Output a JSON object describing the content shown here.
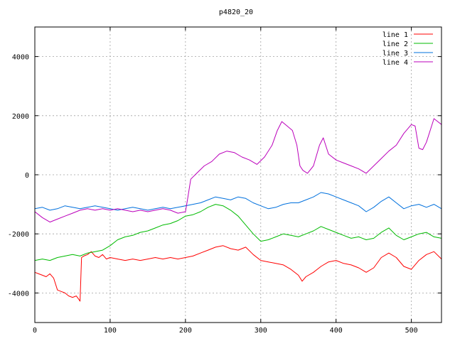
{
  "chart_data": {
    "type": "line",
    "title": "p4820_20",
    "xlabel": "",
    "ylabel": "",
    "xlim": [
      0,
      540
    ],
    "ylim": [
      -5000,
      5000
    ],
    "xticks": [
      0,
      100,
      200,
      300,
      400,
      500
    ],
    "yticks": [
      -4000,
      -2000,
      0,
      2000,
      4000
    ],
    "grid": true,
    "legend_position": "top-right",
    "series": [
      {
        "name": "line 1",
        "color": "#ff0000",
        "points": [
          [
            0,
            -3300
          ],
          [
            5,
            -3350
          ],
          [
            10,
            -3400
          ],
          [
            15,
            -3450
          ],
          [
            20,
            -3350
          ],
          [
            25,
            -3500
          ],
          [
            30,
            -3900
          ],
          [
            35,
            -3950
          ],
          [
            40,
            -4000
          ],
          [
            45,
            -4100
          ],
          [
            50,
            -4150
          ],
          [
            55,
            -4100
          ],
          [
            58,
            -4200
          ],
          [
            60,
            -4280
          ],
          [
            62,
            -2800
          ],
          [
            65,
            -2750
          ],
          [
            70,
            -2700
          ],
          [
            75,
            -2600
          ],
          [
            80,
            -2750
          ],
          [
            85,
            -2800
          ],
          [
            90,
            -2700
          ],
          [
            95,
            -2850
          ],
          [
            100,
            -2800
          ],
          [
            110,
            -2850
          ],
          [
            120,
            -2900
          ],
          [
            130,
            -2850
          ],
          [
            140,
            -2900
          ],
          [
            150,
            -2850
          ],
          [
            160,
            -2800
          ],
          [
            170,
            -2850
          ],
          [
            180,
            -2800
          ],
          [
            190,
            -2850
          ],
          [
            200,
            -2800
          ],
          [
            210,
            -2750
          ],
          [
            220,
            -2650
          ],
          [
            230,
            -2550
          ],
          [
            240,
            -2450
          ],
          [
            250,
            -2400
          ],
          [
            260,
            -2500
          ],
          [
            270,
            -2550
          ],
          [
            280,
            -2450
          ],
          [
            290,
            -2700
          ],
          [
            300,
            -2900
          ],
          [
            310,
            -2950
          ],
          [
            320,
            -3000
          ],
          [
            330,
            -3050
          ],
          [
            340,
            -3200
          ],
          [
            350,
            -3400
          ],
          [
            355,
            -3600
          ],
          [
            360,
            -3450
          ],
          [
            370,
            -3300
          ],
          [
            380,
            -3100
          ],
          [
            390,
            -2950
          ],
          [
            400,
            -2900
          ],
          [
            410,
            -3000
          ],
          [
            420,
            -3050
          ],
          [
            430,
            -3150
          ],
          [
            440,
            -3300
          ],
          [
            450,
            -3150
          ],
          [
            460,
            -2800
          ],
          [
            470,
            -2650
          ],
          [
            480,
            -2800
          ],
          [
            490,
            -3100
          ],
          [
            500,
            -3200
          ],
          [
            510,
            -2900
          ],
          [
            520,
            -2700
          ],
          [
            530,
            -2600
          ],
          [
            540,
            -2850
          ]
        ]
      },
      {
        "name": "line 2",
        "color": "#00bb00",
        "points": [
          [
            0,
            -2900
          ],
          [
            10,
            -2850
          ],
          [
            20,
            -2900
          ],
          [
            30,
            -2800
          ],
          [
            40,
            -2750
          ],
          [
            50,
            -2700
          ],
          [
            60,
            -2750
          ],
          [
            70,
            -2650
          ],
          [
            80,
            -2600
          ],
          [
            90,
            -2550
          ],
          [
            100,
            -2400
          ],
          [
            110,
            -2200
          ],
          [
            120,
            -2100
          ],
          [
            130,
            -2050
          ],
          [
            140,
            -1950
          ],
          [
            150,
            -1900
          ],
          [
            160,
            -1800
          ],
          [
            170,
            -1700
          ],
          [
            180,
            -1650
          ],
          [
            190,
            -1550
          ],
          [
            200,
            -1400
          ],
          [
            210,
            -1350
          ],
          [
            220,
            -1250
          ],
          [
            230,
            -1100
          ],
          [
            240,
            -1000
          ],
          [
            250,
            -1050
          ],
          [
            260,
            -1200
          ],
          [
            270,
            -1400
          ],
          [
            280,
            -1700
          ],
          [
            290,
            -2000
          ],
          [
            300,
            -2250
          ],
          [
            310,
            -2200
          ],
          [
            320,
            -2100
          ],
          [
            330,
            -2000
          ],
          [
            340,
            -2050
          ],
          [
            350,
            -2100
          ],
          [
            360,
            -2000
          ],
          [
            370,
            -1900
          ],
          [
            380,
            -1750
          ],
          [
            390,
            -1850
          ],
          [
            400,
            -1950
          ],
          [
            410,
            -2050
          ],
          [
            420,
            -2150
          ],
          [
            430,
            -2100
          ],
          [
            440,
            -2200
          ],
          [
            450,
            -2150
          ],
          [
            460,
            -1950
          ],
          [
            470,
            -1800
          ],
          [
            480,
            -2050
          ],
          [
            490,
            -2200
          ],
          [
            500,
            -2100
          ],
          [
            510,
            -2000
          ],
          [
            520,
            -1950
          ],
          [
            530,
            -2100
          ],
          [
            540,
            -2150
          ]
        ]
      },
      {
        "name": "line 3",
        "color": "#0070dd",
        "points": [
          [
            0,
            -1150
          ],
          [
            10,
            -1100
          ],
          [
            20,
            -1200
          ],
          [
            30,
            -1150
          ],
          [
            40,
            -1050
          ],
          [
            50,
            -1100
          ],
          [
            60,
            -1150
          ],
          [
            70,
            -1100
          ],
          [
            80,
            -1050
          ],
          [
            90,
            -1100
          ],
          [
            100,
            -1150
          ],
          [
            110,
            -1200
          ],
          [
            120,
            -1150
          ],
          [
            130,
            -1100
          ],
          [
            140,
            -1150
          ],
          [
            150,
            -1200
          ],
          [
            160,
            -1150
          ],
          [
            170,
            -1100
          ],
          [
            180,
            -1150
          ],
          [
            190,
            -1100
          ],
          [
            200,
            -1050
          ],
          [
            210,
            -1000
          ],
          [
            220,
            -950
          ],
          [
            230,
            -850
          ],
          [
            240,
            -750
          ],
          [
            250,
            -800
          ],
          [
            260,
            -850
          ],
          [
            270,
            -750
          ],
          [
            280,
            -800
          ],
          [
            290,
            -950
          ],
          [
            300,
            -1050
          ],
          [
            310,
            -1150
          ],
          [
            320,
            -1100
          ],
          [
            330,
            -1000
          ],
          [
            340,
            -950
          ],
          [
            350,
            -950
          ],
          [
            360,
            -850
          ],
          [
            370,
            -750
          ],
          [
            380,
            -600
          ],
          [
            390,
            -650
          ],
          [
            400,
            -750
          ],
          [
            410,
            -850
          ],
          [
            420,
            -950
          ],
          [
            430,
            -1050
          ],
          [
            440,
            -1250
          ],
          [
            450,
            -1100
          ],
          [
            460,
            -900
          ],
          [
            470,
            -750
          ],
          [
            480,
            -950
          ],
          [
            490,
            -1150
          ],
          [
            500,
            -1050
          ],
          [
            510,
            -1000
          ],
          [
            520,
            -1100
          ],
          [
            530,
            -1000
          ],
          [
            540,
            -1150
          ]
        ]
      },
      {
        "name": "line 4",
        "color": "#bb00bb",
        "points": [
          [
            0,
            -1250
          ],
          [
            10,
            -1450
          ],
          [
            20,
            -1600
          ],
          [
            30,
            -1500
          ],
          [
            40,
            -1400
          ],
          [
            50,
            -1300
          ],
          [
            60,
            -1200
          ],
          [
            70,
            -1150
          ],
          [
            80,
            -1200
          ],
          [
            90,
            -1150
          ],
          [
            100,
            -1200
          ],
          [
            110,
            -1150
          ],
          [
            120,
            -1200
          ],
          [
            130,
            -1250
          ],
          [
            140,
            -1200
          ],
          [
            150,
            -1250
          ],
          [
            160,
            -1200
          ],
          [
            170,
            -1150
          ],
          [
            180,
            -1200
          ],
          [
            190,
            -1300
          ],
          [
            200,
            -1250
          ],
          [
            203,
            -800
          ],
          [
            207,
            -150
          ],
          [
            215,
            50
          ],
          [
            225,
            300
          ],
          [
            235,
            450
          ],
          [
            245,
            700
          ],
          [
            255,
            800
          ],
          [
            265,
            750
          ],
          [
            275,
            600
          ],
          [
            285,
            500
          ],
          [
            295,
            350
          ],
          [
            305,
            600
          ],
          [
            315,
            1000
          ],
          [
            322,
            1500
          ],
          [
            328,
            1800
          ],
          [
            335,
            1650
          ],
          [
            342,
            1500
          ],
          [
            348,
            1000
          ],
          [
            352,
            300
          ],
          [
            356,
            150
          ],
          [
            362,
            50
          ],
          [
            370,
            300
          ],
          [
            378,
            1000
          ],
          [
            383,
            1250
          ],
          [
            390,
            700
          ],
          [
            400,
            500
          ],
          [
            410,
            400
          ],
          [
            420,
            300
          ],
          [
            430,
            200
          ],
          [
            440,
            50
          ],
          [
            450,
            300
          ],
          [
            460,
            550
          ],
          [
            470,
            800
          ],
          [
            480,
            1000
          ],
          [
            490,
            1400
          ],
          [
            500,
            1700
          ],
          [
            505,
            1650
          ],
          [
            510,
            900
          ],
          [
            515,
            850
          ],
          [
            520,
            1100
          ],
          [
            530,
            1900
          ],
          [
            535,
            1800
          ],
          [
            540,
            1700
          ]
        ]
      }
    ]
  }
}
